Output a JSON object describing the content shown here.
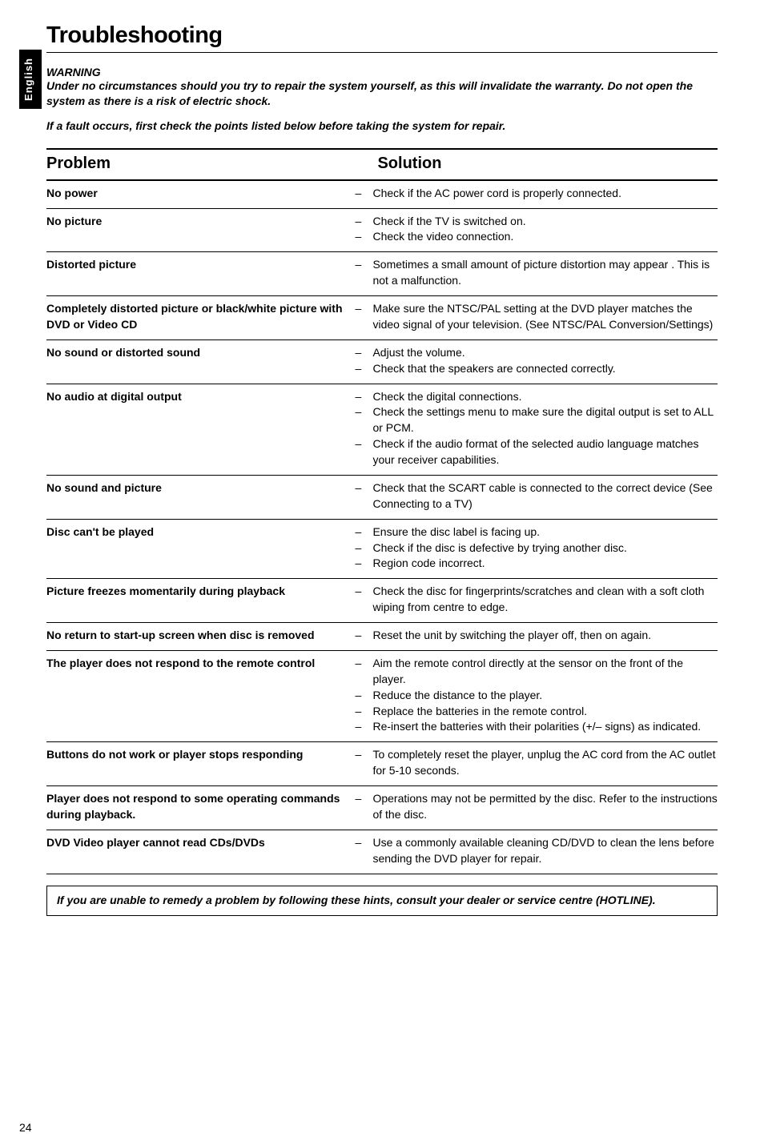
{
  "meta": {
    "pageNumber": "24",
    "sideTab": "English"
  },
  "title": "Troubleshooting",
  "warningHead": "WARNING",
  "warningBody": "Under no circumstances should you try to repair the system yourself, as this will invalidate the warranty.  Do not open the system as there is a risk of electric shock.",
  "faultLine": "If a fault occurs, first check the points listed below before taking the system for repair.",
  "tableHeaders": {
    "problem": "Problem",
    "solution": "Solution"
  },
  "rows": [
    {
      "problem": "No power",
      "solutions": [
        "Check if the AC power cord is properly connected."
      ]
    },
    {
      "problem": "No picture",
      "solutions": [
        "Check if the TV is switched on.",
        "Check the video connection."
      ]
    },
    {
      "problem": "Distorted picture",
      "solutions": [
        "Sometimes a small amount of picture distortion may appear . This is not a malfunction."
      ]
    },
    {
      "problem": "Completely distorted picture or black/white picture with DVD or Video CD",
      "solutions": [
        "Make sure the NTSC/PAL setting at the DVD player matches the video signal of your television. (See NTSC/PAL Conversion/Settings)"
      ]
    },
    {
      "problem": "No sound or distorted sound",
      "solutions": [
        "Adjust the volume.",
        "Check that the speakers are connected correctly."
      ]
    },
    {
      "problem": "No audio at digital output",
      "solutions": [
        "Check the digital connections.",
        "Check the settings menu to make sure the digital output is set to ALL or PCM.",
        "Check if the audio format of the selected audio language matches your receiver capabilities."
      ]
    },
    {
      "problem": "No sound and picture",
      "solutions": [
        "Check that the SCART cable is connected to the correct device (See Connecting to a TV)"
      ]
    },
    {
      "problem": "Disc can't be played",
      "solutions": [
        "Ensure the disc label is facing up.",
        "Check if the disc is defective by trying another disc.",
        "Region code incorrect."
      ]
    },
    {
      "problem": "Picture freezes momentarily during playback",
      "solutions": [
        "Check the disc for fingerprints/scratches and clean with a soft cloth wiping from centre to edge."
      ]
    },
    {
      "problem": "No return to start-up screen when disc is removed",
      "solutions": [
        "Reset the unit by switching the player off, then on again."
      ]
    },
    {
      "problem": "The player does not respond to the remote control",
      "solutions": [
        "Aim the remote control directly at the sensor on the front of the player.",
        "Reduce the distance to the player.",
        "Replace the batteries in the remote control.",
        "Re-insert the batteries with their polarities (+/– signs) as indicated."
      ]
    },
    {
      "problem": "Buttons do not work or player stops responding",
      "solutions": [
        "To completely reset the player, unplug the AC cord from the AC outlet for 5-10 seconds."
      ]
    },
    {
      "problem": "Player does not respond to some operating commands during playback.",
      "solutions": [
        "Operations may not be permitted by the disc. Refer to the instructions of  the disc."
      ]
    },
    {
      "problem": "DVD Video player cannot read CDs/DVDs",
      "solutions": [
        "Use a commonly available cleaning CD/DVD to clean the lens before sending the DVD player for repair."
      ]
    }
  ],
  "footer": "If you are unable to remedy a problem by following these hints, consult your dealer or service centre (HOTLINE)."
}
